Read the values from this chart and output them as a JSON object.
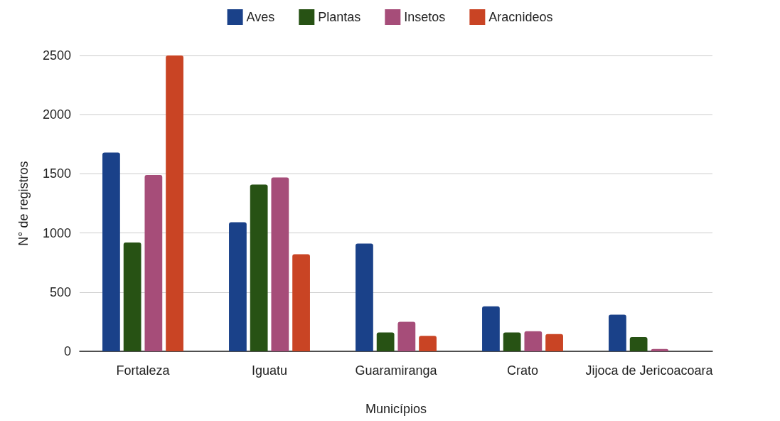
{
  "chart_data": {
    "type": "bar",
    "xlabel": "Municípios",
    "ylabel": "N° de registros",
    "categories": [
      "Fortaleza",
      "Iguatu",
      "Guaramiranga",
      "Crato",
      "Jijoca de Jericoacoara"
    ],
    "series": [
      {
        "name": "Aves",
        "color": "#1a4189",
        "values": [
          1680,
          1090,
          910,
          380,
          310
        ]
      },
      {
        "name": "Plantas",
        "color": "#275214",
        "values": [
          920,
          1410,
          160,
          160,
          120
        ]
      },
      {
        "name": "Insetos",
        "color": "#a64d79",
        "values": [
          1490,
          1470,
          250,
          170,
          20
        ]
      },
      {
        "name": "Aracnideos",
        "color": "#c94424",
        "values": [
          2500,
          820,
          130,
          145,
          0
        ]
      }
    ],
    "ylim": [
      0,
      2500
    ],
    "yticks": [
      0,
      500,
      1000,
      1500,
      2000,
      2500
    ],
    "grid": "y",
    "legend": "top"
  }
}
